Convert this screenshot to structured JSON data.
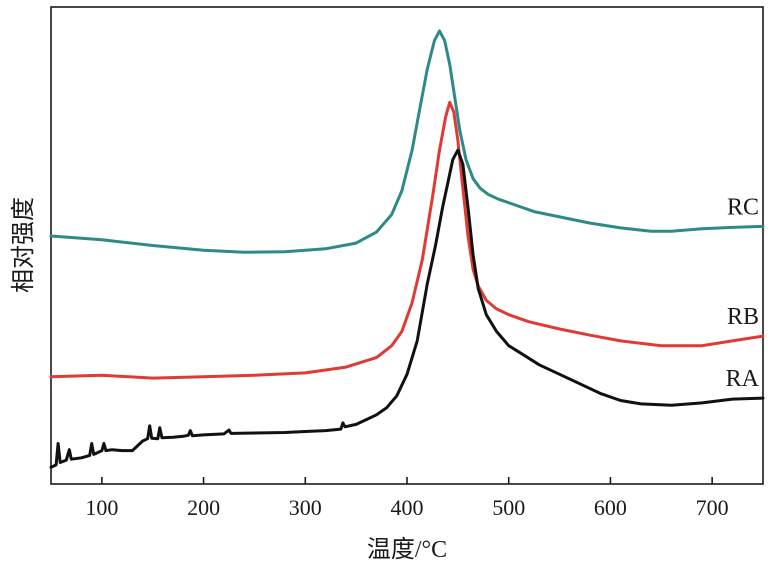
{
  "chart_data": {
    "type": "line",
    "title": "",
    "xlabel": "温度/°C",
    "ylabel": "相对强度",
    "xlim": [
      50,
      750
    ],
    "xticks": [
      100,
      200,
      300,
      400,
      500,
      600,
      700
    ],
    "yticks": [],
    "grid": false,
    "legend": "inline labels at right end of each curve",
    "series": [
      {
        "name": "RC",
        "color": "#2e8a87",
        "x": [
          50,
          100,
          150,
          200,
          240,
          280,
          320,
          350,
          370,
          385,
          395,
          405,
          412,
          420,
          427,
          432,
          437,
          442,
          447,
          452,
          458,
          465,
          472,
          480,
          490,
          505,
          525,
          550,
          580,
          610,
          640,
          660,
          690,
          720,
          750
        ],
        "y": [
          0.52,
          0.512,
          0.5,
          0.49,
          0.486,
          0.487,
          0.493,
          0.505,
          0.528,
          0.565,
          0.615,
          0.7,
          0.78,
          0.87,
          0.93,
          0.95,
          0.93,
          0.88,
          0.81,
          0.74,
          0.68,
          0.64,
          0.62,
          0.607,
          0.597,
          0.586,
          0.571,
          0.56,
          0.547,
          0.537,
          0.53,
          0.53,
          0.535,
          0.538,
          0.54
        ]
      },
      {
        "name": "RB",
        "color": "#e03a36",
        "x": [
          50,
          100,
          150,
          200,
          250,
          300,
          340,
          370,
          385,
          395,
          405,
          415,
          425,
          432,
          438,
          442,
          446,
          450,
          455,
          460,
          465,
          470,
          478,
          488,
          500,
          520,
          550,
          580,
          610,
          650,
          690,
          720,
          750
        ],
        "y": [
          0.225,
          0.228,
          0.222,
          0.225,
          0.228,
          0.233,
          0.245,
          0.265,
          0.29,
          0.32,
          0.38,
          0.47,
          0.6,
          0.7,
          0.77,
          0.8,
          0.78,
          0.72,
          0.62,
          0.52,
          0.45,
          0.415,
          0.385,
          0.367,
          0.355,
          0.34,
          0.325,
          0.312,
          0.3,
          0.29,
          0.29,
          0.3,
          0.31
        ]
      },
      {
        "name": "RA",
        "color": "#111111",
        "x": [
          50,
          55,
          57,
          59,
          65,
          68,
          70,
          80,
          88,
          90,
          92,
          95,
          100,
          102,
          104,
          110,
          120,
          130,
          140,
          145,
          147,
          149,
          155,
          157,
          159,
          170,
          180,
          185,
          187,
          189,
          200,
          220,
          225,
          227,
          229,
          250,
          280,
          300,
          320,
          335,
          337,
          339,
          350,
          360,
          370,
          380,
          390,
          400,
          410,
          420,
          428,
          435,
          440,
          445,
          450,
          455,
          460,
          465,
          470,
          478,
          488,
          500,
          515,
          530,
          550,
          570,
          590,
          610,
          630,
          660,
          690,
          720,
          750
        ],
        "y": [
          0.035,
          0.04,
          0.085,
          0.045,
          0.05,
          0.072,
          0.052,
          0.055,
          0.06,
          0.085,
          0.062,
          0.065,
          0.07,
          0.085,
          0.07,
          0.072,
          0.07,
          0.07,
          0.09,
          0.095,
          0.122,
          0.096,
          0.095,
          0.118,
          0.097,
          0.098,
          0.1,
          0.102,
          0.112,
          0.101,
          0.103,
          0.105,
          0.113,
          0.106,
          0.106,
          0.107,
          0.108,
          0.11,
          0.112,
          0.115,
          0.128,
          0.12,
          0.125,
          0.135,
          0.145,
          0.16,
          0.185,
          0.23,
          0.3,
          0.42,
          0.5,
          0.58,
          0.63,
          0.68,
          0.7,
          0.67,
          0.58,
          0.48,
          0.41,
          0.355,
          0.32,
          0.29,
          0.27,
          0.25,
          0.23,
          0.21,
          0.19,
          0.175,
          0.168,
          0.165,
          0.17,
          0.178,
          0.18
        ]
      }
    ]
  }
}
